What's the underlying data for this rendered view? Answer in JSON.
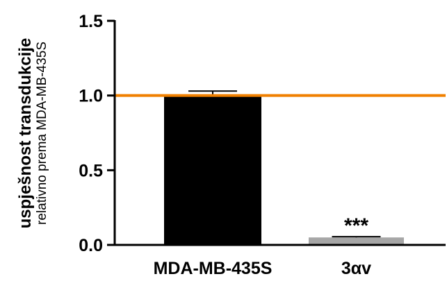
{
  "chart_data": {
    "type": "bar",
    "categories": [
      "MDA-MB-435S",
      "3αv"
    ],
    "values": [
      1.0,
      0.05
    ],
    "errors": [
      0.03,
      0.005
    ],
    "bar_colors": [
      "#000000",
      "#a6a6a6"
    ],
    "annotations": [
      "",
      "***"
    ],
    "ylabel": "uspješnost transdukcije",
    "ylabel_sub": "relativno prema MDA-MB-435S",
    "xlabel": "",
    "ylim": [
      0,
      1.5
    ],
    "yticks": [
      0.0,
      0.5,
      1.0,
      1.5
    ],
    "ytick_labels": [
      "0.0",
      "0.5",
      "1.0",
      "1.5"
    ],
    "reference_line": {
      "y": 1.0,
      "color": "#f08000"
    },
    "grid": false
  }
}
